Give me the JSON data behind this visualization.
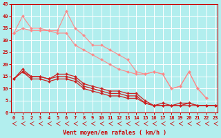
{
  "background_color": "#b2eeee",
  "grid_color": "#ffffff",
  "plot_bg": "#c8f0f0",
  "x_values": [
    0,
    1,
    2,
    3,
    4,
    5,
    6,
    7,
    8,
    9,
    10,
    11,
    12,
    13,
    14,
    15,
    16,
    17,
    18,
    19,
    20,
    21,
    22,
    23
  ],
  "series": [
    {
      "color": "#ff8888",
      "linewidth": 0.8,
      "markersize": 2.0,
      "y": [
        33,
        40,
        35,
        35,
        34,
        34,
        42,
        35,
        32,
        28,
        28,
        26,
        24,
        22,
        17,
        16,
        17,
        16,
        10,
        11,
        17,
        10,
        6,
        null
      ]
    },
    {
      "color": "#ff8888",
      "linewidth": 0.8,
      "markersize": 2.0,
      "y": [
        33,
        35,
        34,
        34,
        34,
        33,
        33,
        28,
        26,
        24,
        22,
        20,
        18,
        17,
        16,
        16,
        17,
        16,
        10,
        11,
        17,
        10,
        6,
        null
      ]
    },
    {
      "color": "#cc2222",
      "linewidth": 0.9,
      "markersize": 2.0,
      "y": [
        14,
        18,
        15,
        15,
        14,
        16,
        16,
        15,
        12,
        11,
        10,
        9,
        9,
        8,
        8,
        5,
        3,
        4,
        3,
        4,
        4,
        3,
        3,
        3
      ]
    },
    {
      "color": "#cc2222",
      "linewidth": 0.9,
      "markersize": 2.0,
      "y": [
        14,
        17,
        15,
        15,
        14,
        15,
        15,
        14,
        11,
        10,
        9,
        8,
        8,
        7,
        7,
        4,
        3,
        3,
        3,
        3,
        4,
        3,
        3,
        3
      ]
    },
    {
      "color": "#cc2222",
      "linewidth": 0.9,
      "markersize": 2.0,
      "y": [
        14,
        17,
        14,
        14,
        13,
        14,
        14,
        13,
        10,
        9,
        8,
        7,
        7,
        6,
        6,
        4,
        3,
        3,
        3,
        3,
        3,
        3,
        3,
        3
      ]
    }
  ],
  "xlim": [
    -0.3,
    23.3
  ],
  "ylim": [
    0,
    45
  ],
  "yticks": [
    0,
    5,
    10,
    15,
    20,
    25,
    30,
    35,
    40,
    45
  ],
  "xticks": [
    0,
    1,
    2,
    3,
    4,
    5,
    6,
    7,
    8,
    9,
    10,
    11,
    12,
    13,
    14,
    15,
    16,
    17,
    18,
    19,
    20,
    21,
    22,
    23
  ],
  "xlabel": "Vent moyen/en rafales ( km/h )",
  "xlabel_color": "#cc0000",
  "xlabel_fontsize": 6.0,
  "tick_color": "#cc0000",
  "tick_fontsize": 5.0,
  "arrow_color": "#cc0000",
  "axis_color": "#cc0000"
}
